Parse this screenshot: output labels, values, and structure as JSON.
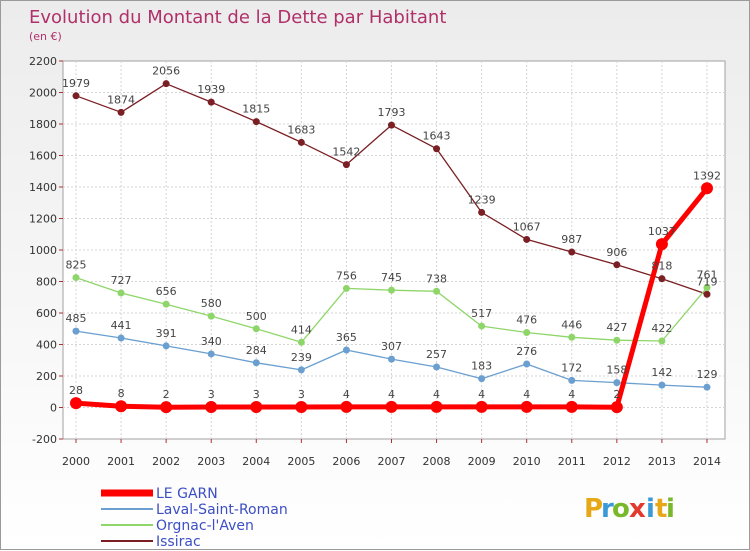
{
  "chart_data": {
    "type": "line",
    "title": "Evolution du Montant de la Dette par Habitant",
    "subtitle": "(en €)",
    "xlabel": "",
    "ylabel": "",
    "x": [
      "2000",
      "2001",
      "2002",
      "2003",
      "2004",
      "2005",
      "2006",
      "2007",
      "2008",
      "2009",
      "2010",
      "2011",
      "2012",
      "2013",
      "2014"
    ],
    "ylim": [
      -200,
      2200
    ],
    "yticks": [
      -200,
      0,
      200,
      400,
      600,
      800,
      1000,
      1200,
      1400,
      1600,
      1800,
      2000,
      2200
    ],
    "grid": true,
    "legend_position": "bottom-left",
    "series": [
      {
        "name": "Issirac",
        "color": "#7a1f24",
        "stroke_width": 1.3,
        "marker_r": 3.5,
        "values": [
          1979,
          1874,
          2056,
          1939,
          1815,
          1683,
          1542,
          1793,
          1643,
          1239,
          1067,
          987,
          906,
          818,
          719
        ]
      },
      {
        "name": "Orgnac-l'Aven",
        "color": "#8fd66a",
        "stroke_width": 1.3,
        "marker_r": 3.5,
        "values": [
          825,
          727,
          656,
          580,
          500,
          414,
          756,
          745,
          738,
          517,
          476,
          446,
          427,
          422,
          761
        ]
      },
      {
        "name": "Laval-Saint-Roman",
        "color": "#6a9fd0",
        "stroke_width": 1.3,
        "marker_r": 3.5,
        "values": [
          485,
          441,
          391,
          340,
          284,
          239,
          365,
          307,
          257,
          183,
          276,
          172,
          158,
          142,
          129
        ]
      },
      {
        "name": "LE GARN",
        "color": "#ff0000",
        "stroke_width": 5,
        "marker_r": 6,
        "values": [
          28,
          8,
          2,
          3,
          3,
          3,
          4,
          4,
          4,
          4,
          4,
          4,
          2,
          1037,
          1392
        ]
      }
    ],
    "legend_order": [
      "LE GARN",
      "Laval-Saint-Roman",
      "Orgnac-l'Aven",
      "Issirac"
    ]
  },
  "logo": {
    "text": "Proxiti"
  }
}
